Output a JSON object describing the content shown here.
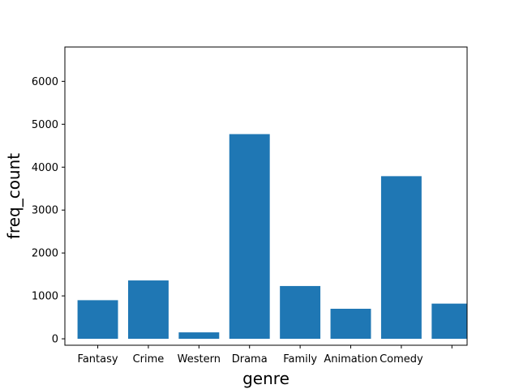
{
  "chart_data": {
    "type": "bar",
    "title": "",
    "xlabel": "genre",
    "ylabel": "freq_count",
    "categories": [
      "Fantasy",
      "Crime",
      "Western",
      "Drama",
      "Family",
      "Animation",
      "Comedy",
      ""
    ],
    "values": [
      900,
      1360,
      150,
      4770,
      1230,
      700,
      3790,
      820
    ],
    "ylim": [
      -150,
      6800
    ],
    "xlim": [
      -0.65,
      7.3
    ],
    "yticks": [
      0,
      1000,
      2000,
      3000,
      4000,
      5000,
      6000
    ],
    "bar_width": 0.8,
    "bar_color": "#1f77b4",
    "grid": false,
    "legend": "none"
  }
}
